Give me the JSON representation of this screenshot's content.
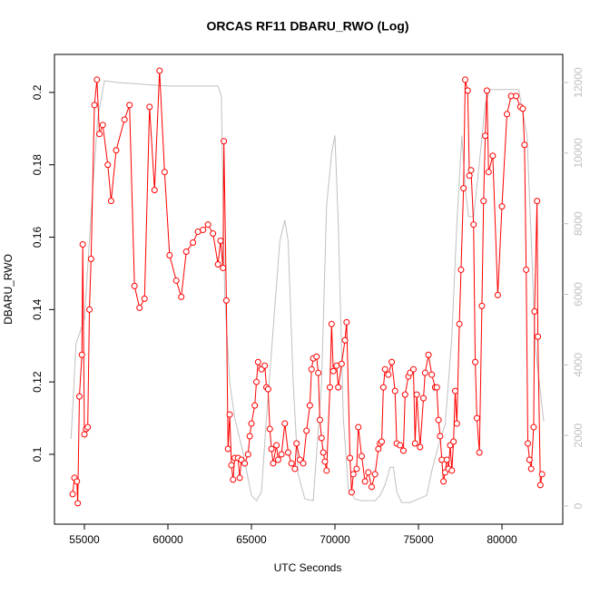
{
  "chart_data": {
    "type": "line",
    "title": "ORCAS RF11 DBARU_RWO (Log)",
    "x_label": "UTC Seconds",
    "y_label": "DBARU_RWO",
    "xlim": [
      53207,
      83641
    ],
    "xticks": [
      55000,
      60000,
      65000,
      70000,
      75000,
      80000
    ],
    "ylim": [
      0.0807,
      0.2105
    ],
    "yticks": [
      0.1,
      0.12,
      0.14,
      0.16,
      0.18,
      0.2
    ],
    "y2lim": [
      -514,
      12797
    ],
    "y2ticks": [
      0,
      2000,
      4000,
      6000,
      8000,
      10000,
      12000
    ],
    "series": [
      {
        "color": "#ff0000",
        "markers": true,
        "x": [
          54300,
          54400,
          54550,
          54600,
          54700,
          54850,
          54900,
          55000,
          55100,
          55200,
          55300,
          55400,
          55600,
          55750,
          55900,
          56100,
          56400,
          56600,
          56900,
          57400,
          57700,
          58000,
          58300,
          58600,
          58900,
          59200,
          59500,
          59800,
          60100,
          60500,
          60800,
          61100,
          61500,
          61800,
          62100,
          62400,
          62700,
          63000,
          63150,
          63300,
          63350,
          63500,
          63600,
          63700,
          63800,
          63900,
          64000,
          64200,
          64300,
          64400,
          64600,
          64800,
          64900,
          65000,
          65200,
          65300,
          65400,
          65600,
          65800,
          65900,
          66000,
          66100,
          66200,
          66300,
          66500,
          66600,
          66800,
          67000,
          67200,
          67400,
          67600,
          67700,
          67900,
          68100,
          68300,
          68500,
          68600,
          68700,
          68900,
          69000,
          69100,
          69200,
          69300,
          69400,
          69500,
          69700,
          69800,
          69900,
          70100,
          70200,
          70400,
          70600,
          70700,
          70900,
          71000,
          71100,
          71300,
          71400,
          71600,
          71800,
          72000,
          72200,
          72400,
          72600,
          72700,
          72800,
          72900,
          73000,
          73200,
          73400,
          73600,
          73700,
          73900,
          74100,
          74200,
          74400,
          74500,
          74700,
          74800,
          74900,
          75100,
          75300,
          75400,
          75600,
          75800,
          76000,
          76100,
          76200,
          76300,
          76400,
          76500,
          76600,
          76700,
          76800,
          76900,
          77000,
          77100,
          77200,
          77300,
          77450,
          77550,
          77700,
          77800,
          77950,
          78050,
          78150,
          78300,
          78400,
          78500,
          78650,
          78800,
          78900,
          79000,
          79100,
          79200,
          79450,
          79750,
          80000,
          80300,
          80550,
          80850,
          81100,
          81250,
          81350,
          81450,
          81550,
          81650,
          81750,
          81900,
          81950,
          82100,
          82150,
          82300,
          82400
        ],
        "values": [
          0.089,
          0.0935,
          0.0925,
          0.0865,
          0.116,
          0.1275,
          0.158,
          0.1055,
          0.107,
          0.1075,
          0.14,
          0.154,
          0.1965,
          0.2035,
          0.1885,
          0.191,
          0.18,
          0.17,
          0.184,
          0.1925,
          0.1965,
          0.1465,
          0.1405,
          0.143,
          0.196,
          0.173,
          0.206,
          0.178,
          0.155,
          0.148,
          0.1435,
          0.156,
          0.1585,
          0.1615,
          0.162,
          0.1635,
          0.161,
          0.1525,
          0.159,
          0.1515,
          0.1865,
          0.1425,
          0.1015,
          0.111,
          0.097,
          0.093,
          0.099,
          0.099,
          0.0935,
          0.0985,
          0.0975,
          0.1,
          0.105,
          0.1085,
          0.1135,
          0.12,
          0.1255,
          0.1235,
          0.1245,
          0.1185,
          0.118,
          0.107,
          0.1015,
          0.0975,
          0.1025,
          0.0985,
          0.1,
          0.1085,
          0.1005,
          0.0975,
          0.096,
          0.103,
          0.0985,
          0.0975,
          0.1065,
          0.1135,
          0.1235,
          0.1265,
          0.127,
          0.1225,
          0.1095,
          0.1045,
          0.1005,
          0.098,
          0.0955,
          0.1185,
          0.136,
          0.123,
          0.1245,
          0.1185,
          0.125,
          0.1315,
          0.1365,
          0.099,
          0.0895,
          0.0945,
          0.096,
          0.1075,
          0.0995,
          0.0925,
          0.095,
          0.091,
          0.0945,
          0.1015,
          0.103,
          0.1035,
          0.1185,
          0.1235,
          0.122,
          0.1255,
          0.1175,
          0.103,
          0.1025,
          0.101,
          0.1165,
          0.1215,
          0.1225,
          0.1235,
          0.103,
          0.1165,
          0.102,
          0.1155,
          0.1225,
          0.1275,
          0.122,
          0.1185,
          0.1185,
          0.1095,
          0.105,
          0.0985,
          0.0925,
          0.095,
          0.0985,
          0.096,
          0.1025,
          0.0955,
          0.1035,
          0.1175,
          0.1085,
          0.136,
          0.151,
          0.1735,
          0.2035,
          0.2005,
          0.177,
          0.1785,
          0.1635,
          0.1255,
          0.11,
          0.1005,
          0.141,
          0.17,
          0.188,
          0.2005,
          0.178,
          0.1825,
          0.144,
          0.1685,
          0.194,
          0.199,
          0.199,
          0.196,
          0.1955,
          0.1855,
          0.151,
          0.103,
          0.0985,
          0.096,
          0.1075,
          0.1395,
          0.17,
          0.1325,
          0.0915,
          0.0945
        ]
      },
      {
        "color": "#c0c0c0",
        "axis": "y2",
        "markers": false,
        "x": [
          54200,
          54500,
          55000,
          55500,
          55800,
          56200,
          57000,
          60000,
          63000,
          63200,
          63400,
          63700,
          64000,
          64500,
          65000,
          65300,
          65600,
          65900,
          66300,
          66700,
          67000,
          67200,
          67500,
          67800,
          68200,
          68700,
          69200,
          69500,
          69800,
          70000,
          70200,
          70500,
          70800,
          71200,
          71600,
          72000,
          72400,
          72700,
          73000,
          73300,
          73500,
          73700,
          74000,
          74500,
          75000,
          75500,
          75800,
          76300,
          76600,
          77000,
          77300,
          77600,
          77800,
          78000,
          78300,
          78600,
          79000,
          79300,
          80000,
          81000,
          81500,
          81800,
          82000,
          82500
        ],
        "values": [
          1900,
          4600,
          5300,
          9000,
          11000,
          12050,
          12000,
          11900,
          11900,
          11600,
          6000,
          3500,
          2500,
          1500,
          300,
          150,
          400,
          2500,
          5000,
          7500,
          8100,
          7500,
          3500,
          900,
          200,
          150,
          3500,
          8500,
          10000,
          10500,
          8000,
          2500,
          500,
          200,
          150,
          150,
          150,
          300,
          600,
          1100,
          1100,
          400,
          100,
          100,
          200,
          300,
          1000,
          1900,
          2300,
          4800,
          8000,
          10500,
          9000,
          8200,
          8200,
          9500,
          11400,
          11800,
          11800,
          11800,
          10500,
          7000,
          4500,
          2400
        ]
      }
    ]
  }
}
